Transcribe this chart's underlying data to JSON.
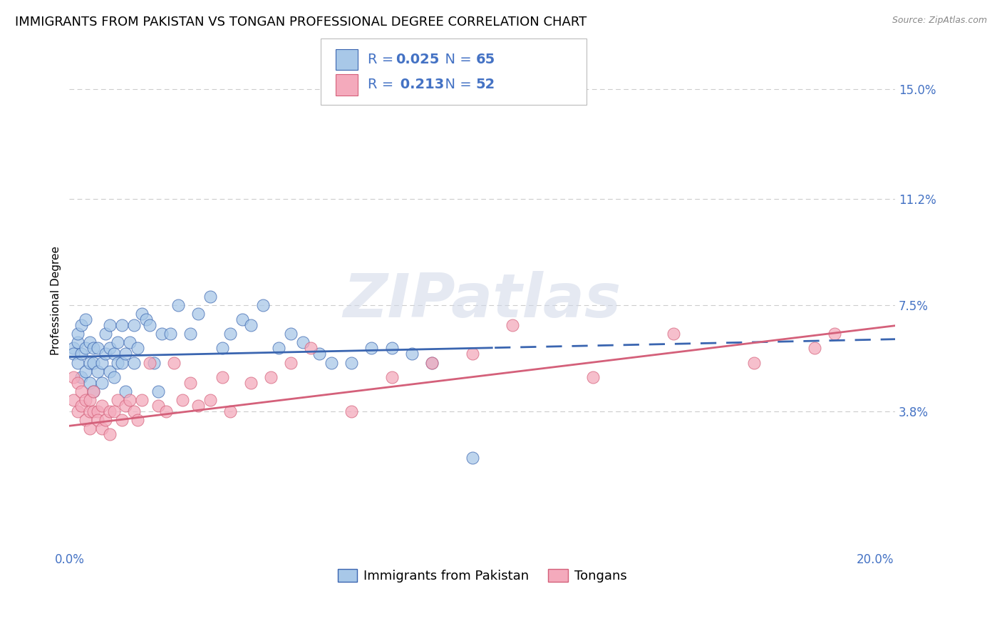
{
  "title": "IMMIGRANTS FROM PAKISTAN VS TONGAN PROFESSIONAL DEGREE CORRELATION CHART",
  "source": "Source: ZipAtlas.com",
  "ylabel": "Professional Degree",
  "watermark": "ZIPatlas",
  "xlim": [
    0.0,
    0.205
  ],
  "ylim": [
    -0.01,
    0.163
  ],
  "yticks_right": [
    0.038,
    0.075,
    0.112,
    0.15
  ],
  "yticklabels_right": [
    "3.8%",
    "7.5%",
    "11.2%",
    "15.0%"
  ],
  "legend_entries": [
    {
      "label": "Immigrants from Pakistan",
      "R": "0.025",
      "N": "65",
      "color": "#a8c8e8",
      "edge": "#6699cc"
    },
    {
      "label": "Tongans",
      "R": "0.213",
      "N": "52",
      "color": "#f4aabc",
      "edge": "#cc6688"
    }
  ],
  "pakistan_scatter_x": [
    0.001,
    0.001,
    0.002,
    0.002,
    0.002,
    0.003,
    0.003,
    0.003,
    0.004,
    0.004,
    0.004,
    0.005,
    0.005,
    0.005,
    0.006,
    0.006,
    0.006,
    0.007,
    0.007,
    0.008,
    0.008,
    0.009,
    0.009,
    0.01,
    0.01,
    0.01,
    0.011,
    0.011,
    0.012,
    0.012,
    0.013,
    0.013,
    0.014,
    0.014,
    0.015,
    0.016,
    0.016,
    0.017,
    0.018,
    0.019,
    0.02,
    0.021,
    0.022,
    0.023,
    0.025,
    0.027,
    0.03,
    0.032,
    0.035,
    0.038,
    0.04,
    0.043,
    0.045,
    0.048,
    0.052,
    0.055,
    0.058,
    0.062,
    0.065,
    0.07,
    0.075,
    0.08,
    0.085,
    0.09,
    0.1
  ],
  "pakistan_scatter_y": [
    0.06,
    0.058,
    0.062,
    0.055,
    0.065,
    0.058,
    0.05,
    0.068,
    0.06,
    0.052,
    0.07,
    0.055,
    0.048,
    0.062,
    0.06,
    0.055,
    0.045,
    0.052,
    0.06,
    0.055,
    0.048,
    0.065,
    0.058,
    0.06,
    0.052,
    0.068,
    0.058,
    0.05,
    0.062,
    0.055,
    0.068,
    0.055,
    0.058,
    0.045,
    0.062,
    0.055,
    0.068,
    0.06,
    0.072,
    0.07,
    0.068,
    0.055,
    0.045,
    0.065,
    0.065,
    0.075,
    0.065,
    0.072,
    0.078,
    0.06,
    0.065,
    0.07,
    0.068,
    0.075,
    0.06,
    0.065,
    0.062,
    0.058,
    0.055,
    0.055,
    0.06,
    0.06,
    0.058,
    0.055,
    0.022
  ],
  "tongan_scatter_x": [
    0.001,
    0.001,
    0.002,
    0.002,
    0.003,
    0.003,
    0.004,
    0.004,
    0.005,
    0.005,
    0.005,
    0.006,
    0.006,
    0.007,
    0.007,
    0.008,
    0.008,
    0.009,
    0.01,
    0.01,
    0.011,
    0.012,
    0.013,
    0.014,
    0.015,
    0.016,
    0.017,
    0.018,
    0.02,
    0.022,
    0.024,
    0.026,
    0.028,
    0.03,
    0.032,
    0.035,
    0.038,
    0.04,
    0.045,
    0.05,
    0.055,
    0.06,
    0.07,
    0.08,
    0.09,
    0.1,
    0.11,
    0.13,
    0.15,
    0.17,
    0.185,
    0.19
  ],
  "tongan_scatter_y": [
    0.05,
    0.042,
    0.048,
    0.038,
    0.045,
    0.04,
    0.042,
    0.035,
    0.038,
    0.042,
    0.032,
    0.038,
    0.045,
    0.038,
    0.035,
    0.04,
    0.032,
    0.035,
    0.038,
    0.03,
    0.038,
    0.042,
    0.035,
    0.04,
    0.042,
    0.038,
    0.035,
    0.042,
    0.055,
    0.04,
    0.038,
    0.055,
    0.042,
    0.048,
    0.04,
    0.042,
    0.05,
    0.038,
    0.048,
    0.05,
    0.055,
    0.06,
    0.038,
    0.05,
    0.055,
    0.058,
    0.068,
    0.05,
    0.065,
    0.055,
    0.06,
    0.065
  ],
  "pakistan_color": "#a8c8e8",
  "tongan_color": "#f4aabc",
  "pakistan_line_color": "#3a65b0",
  "tongan_line_color": "#d4607a",
  "pakistan_trend_split": 0.105,
  "background_color": "#ffffff",
  "grid_color": "#cccccc",
  "title_fontsize": 13,
  "label_fontsize": 11,
  "tick_fontsize": 12,
  "legend_fontsize": 14,
  "blue_text_color": "#4472c4"
}
